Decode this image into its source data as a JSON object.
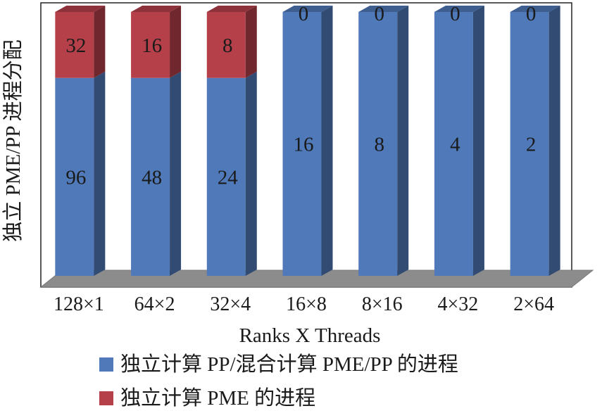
{
  "chart_data": {
    "type": "bar",
    "stacked": true,
    "projection": "3d",
    "categories": [
      "128×1",
      "64×2",
      "32×4",
      "16×8",
      "8×16",
      "4×32",
      "2×64"
    ],
    "series": [
      {
        "name": "独立计算 PP/混合计算 PME/PP 的进程",
        "values": [
          96,
          48,
          24,
          16,
          8,
          4,
          2
        ],
        "color": "#4f79b8"
      },
      {
        "name": "独立计算 PME 的进程",
        "values": [
          32,
          16,
          8,
          0,
          0,
          0,
          0
        ],
        "color": "#b5404a"
      }
    ],
    "xlabel": "Ranks X Threads",
    "ylabel": "独立 PME/PP 进程分配",
    "y_scale": "normalized_100_percent",
    "grid": false,
    "legend_position": "bottom"
  }
}
